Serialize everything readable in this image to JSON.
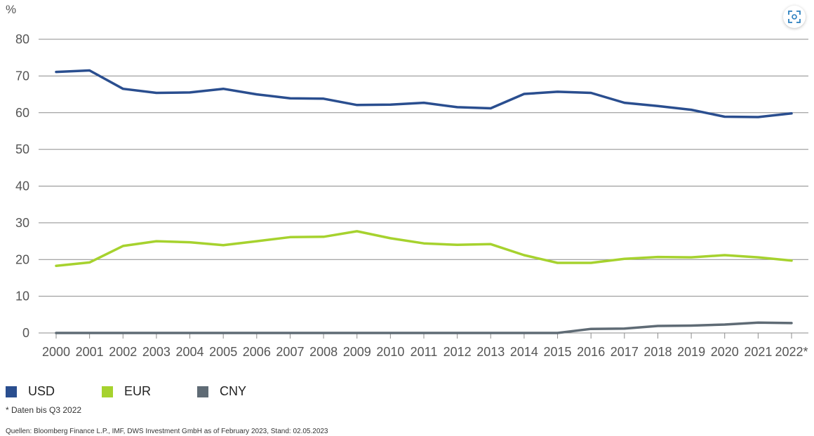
{
  "ui": {
    "unit_label": "%",
    "expand_icon": "expand-icon",
    "footnote": "* Daten bis Q3 2022",
    "source": "Quellen: Bloomberg Finance L.P., IMF, DWS Investment GmbH as of February 2023, Stand: 02.05.2023"
  },
  "legend": [
    {
      "label": "USD",
      "color": "#2a4e8f"
    },
    {
      "label": "EUR",
      "color": "#a6d22e"
    },
    {
      "label": "CNY",
      "color": "#5f6b75"
    }
  ],
  "chart_data": {
    "type": "line",
    "title": "",
    "xlabel": "",
    "ylabel": "%",
    "ylim": [
      0,
      80
    ],
    "yticks": [
      "0",
      "10",
      "20",
      "30",
      "40",
      "50",
      "60",
      "70",
      "80"
    ],
    "grid": true,
    "legend_position": "bottom-left",
    "categories": [
      "2000",
      "2001",
      "2002",
      "2003",
      "2004",
      "2005",
      "2006",
      "2007",
      "2008",
      "2009",
      "2010",
      "2011",
      "2012",
      "2013",
      "2014",
      "2015",
      "2016",
      "2017",
      "2018",
      "2019",
      "2020",
      "2021",
      "2022*"
    ],
    "series": [
      {
        "name": "USD",
        "color": "#2a4e8f",
        "values": [
          71.1,
          71.5,
          66.5,
          65.4,
          65.5,
          66.5,
          65.0,
          63.9,
          63.8,
          62.1,
          62.2,
          62.7,
          61.5,
          61.2,
          65.1,
          65.7,
          65.4,
          62.7,
          61.8,
          60.8,
          58.9,
          58.8,
          59.8
        ]
      },
      {
        "name": "EUR",
        "color": "#a6d22e",
        "values": [
          18.3,
          19.2,
          23.7,
          25.0,
          24.7,
          23.9,
          25.0,
          26.1,
          26.2,
          27.7,
          25.8,
          24.4,
          24.0,
          24.2,
          21.2,
          19.1,
          19.1,
          20.2,
          20.7,
          20.6,
          21.2,
          20.6,
          19.7
        ]
      },
      {
        "name": "CNY",
        "color": "#5f6b75",
        "values": [
          0,
          0,
          0,
          0,
          0,
          0,
          0,
          0,
          0,
          0,
          0,
          0,
          0,
          0,
          0,
          0,
          1.1,
          1.2,
          1.9,
          2.0,
          2.3,
          2.8,
          2.7
        ]
      }
    ]
  }
}
